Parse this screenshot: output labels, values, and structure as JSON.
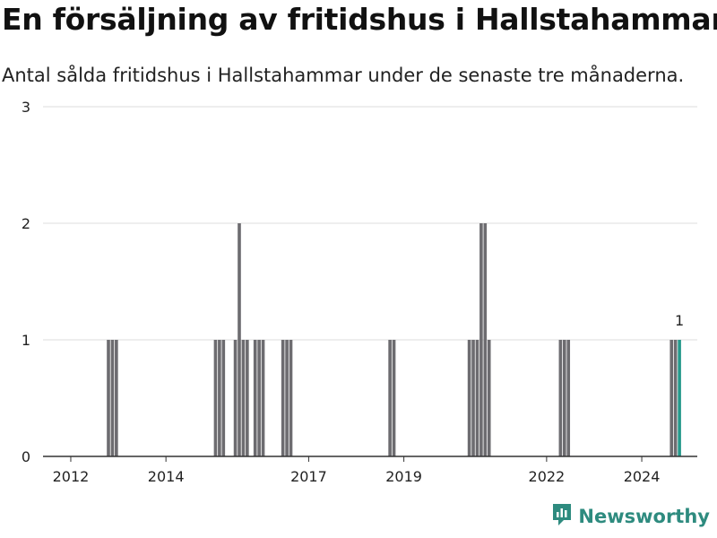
{
  "title": "En försäljning av fritidshus i Hallstahammar",
  "subtitle": "Antal sålda fritidshus i Hallstahammar under de senaste tre månaderna.",
  "brand": {
    "name": "Newsworthy",
    "icon": "newsworthy-logo-icon",
    "color": "#2e8b7f"
  },
  "colors": {
    "bar": "#6d6c70",
    "highlight": "#26998b",
    "grid": "#dddddd",
    "axis": "#333333"
  },
  "chart_data": {
    "type": "bar",
    "x_type": "date",
    "title": "En försäljning av fritidshus i Hallstahammar",
    "subtitle": "Antal sålda fritidshus i Hallstahammar under de senaste tre månaderna.",
    "xlabel": "",
    "ylabel": "",
    "xlim": [
      "2011-06",
      "2025-03"
    ],
    "ylim": [
      0,
      3
    ],
    "yticks": [
      0,
      1,
      2,
      3
    ],
    "xticks": [
      "2012",
      "2014",
      "2017",
      "2019",
      "2022",
      "2024"
    ],
    "grid": true,
    "legend": "none",
    "highlight_label": "1",
    "series": [
      {
        "x": [
          "2012-10",
          "2012-11",
          "2012-12",
          "2015-01",
          "2015-02",
          "2015-03",
          "2015-06",
          "2015-07",
          "2015-08",
          "2015-09",
          "2015-11",
          "2015-12",
          "2016-01",
          "2016-06",
          "2016-07",
          "2016-08",
          "2018-09",
          "2018-10",
          "2020-05",
          "2020-06",
          "2020-07",
          "2020-08",
          "2020-09",
          "2020-10",
          "2022-04",
          "2022-05",
          "2022-06",
          "2024-08",
          "2024-09",
          "2024-10"
        ],
        "values": [
          1,
          1,
          1,
          1,
          1,
          1,
          1,
          2,
          1,
          1,
          1,
          1,
          1,
          1,
          1,
          1,
          1,
          1,
          1,
          1,
          1,
          2,
          2,
          1,
          1,
          1,
          1,
          1,
          1,
          1
        ]
      }
    ],
    "highlight_index": 29
  }
}
